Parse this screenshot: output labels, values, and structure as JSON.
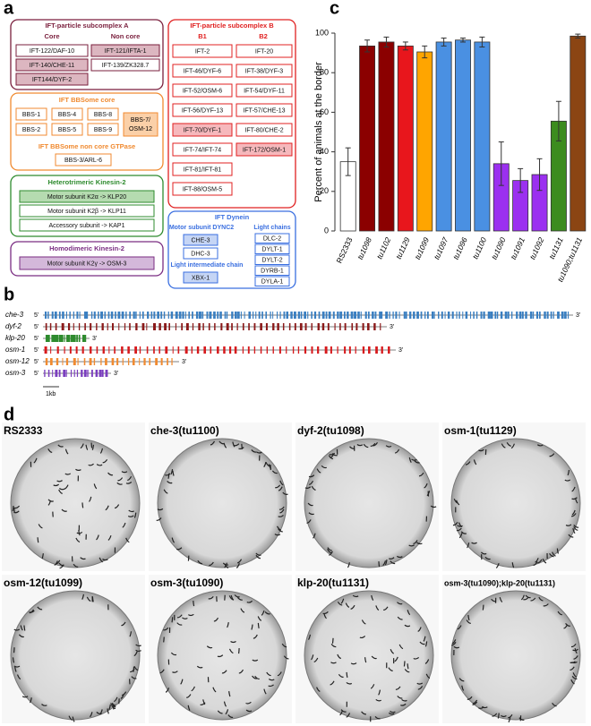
{
  "panel_labels": {
    "a": "a",
    "b": "b",
    "c": "c",
    "d": "d"
  },
  "panel_a": {
    "subcomplex_a": {
      "title": "IFT-particle subcomplex A",
      "core": "Core",
      "non_core": "Non core",
      "core_items": [
        "IFT-122/DAF-10",
        "IFT-140/CHE-11",
        "IFT144/DYF-2"
      ],
      "non_core_items": [
        "IFT-121/IFTA-1",
        "IFT-139/ZK328.7"
      ]
    },
    "subcomplex_b": {
      "title": "IFT-particle subcomplex B",
      "b1": "B1",
      "b2": "B2",
      "b1_items": [
        "IFT-2",
        "IFT-46/DYF-6",
        "IFT-52/OSM-6",
        "IFT-56/DYF-13",
        "IFT-70/DYF-1",
        "IFT-74/IFT-74",
        "IFT-81/IFT-81",
        "IFT-88/OSM-5"
      ],
      "b2_items": [
        "IFT-20",
        "IFT-38/DYF-3",
        "IFT-54/DYF-11",
        "IFT-57/CHE-13",
        "IFT-80/CHE-2",
        "IFT-172/OSM-1"
      ]
    },
    "bbsome": {
      "title": "IFT BBSome core",
      "items": [
        "BBS-1",
        "BBS-4",
        "BBS-8",
        "BBS-2",
        "BBS-5",
        "BBS-9"
      ],
      "bbs7": [
        "BBS-7/",
        "OSM-12"
      ],
      "gtpase_title": "IFT BBSome non core GTPase",
      "gtpase_item": "BBS-3/ARL-6"
    },
    "heterotrimeric": {
      "title": "Heterotrimeric Kinesin-2",
      "items": [
        "Motor subunit K2α -> KLP20",
        "Motor subunit K2β -> KLP11",
        "Accessory subunit -> KAP1"
      ]
    },
    "homodimeric": {
      "title": "Homodimeric Kinesin-2",
      "items": [
        "Motor subunit K2γ -> OSM-3"
      ]
    },
    "dynein": {
      "title": "IFT Dynein",
      "motor": "Motor subunit DYNC2",
      "motor_items": [
        "CHE-3",
        "DHC-3"
      ],
      "lic": "Light intermediate chain",
      "lic_items": [
        "XBX-1"
      ],
      "light": "Light chains",
      "light_items": [
        "DLC-2",
        "DYLT-1",
        "DYLT-2",
        "DYRB-1",
        "DYLA-1"
      ]
    }
  },
  "panel_b": {
    "genes": [
      "che-3",
      "dyf-2",
      "klp-20",
      "osm-1",
      "osm-12",
      "osm-3"
    ],
    "five_prime": "5'",
    "three_prime": "3'",
    "scale": "1kb"
  },
  "chart_data": {
    "type": "bar",
    "ylabel": "Percent of animals at the border",
    "categories": [
      "RS2333",
      "tu1098",
      "tu1102",
      "tu1129",
      "tu1099",
      "tu1097",
      "tu1096",
      "tu1100",
      "tu1090",
      "tu1091",
      "tu1092",
      "tu1131",
      "tu1090;tu1131"
    ],
    "values": [
      35,
      93.5,
      95.5,
      93.5,
      90.5,
      95.5,
      96.5,
      95.5,
      34,
      25.5,
      28.5,
      55.5,
      98.5
    ],
    "errors": [
      7,
      3,
      2.5,
      2,
      3,
      2,
      1,
      2.5,
      11,
      6,
      8,
      10,
      1
    ],
    "colors": [
      "#ffffff",
      "#8b0000",
      "#8b0000",
      "#e8161c",
      "#ffa500",
      "#4a90e2",
      "#4a90e2",
      "#4a90e2",
      "#9b30f0",
      "#9b30f0",
      "#9b30f0",
      "#3c8c1e",
      "#8b4513"
    ],
    "ylim": [
      0,
      100
    ],
    "yticks": [
      0,
      20,
      40,
      60,
      80,
      100
    ]
  },
  "panel_d": {
    "labels": [
      "RS2333",
      "che-3(tu1100)",
      "dyf-2(tu1098)",
      "osm-1(tu1129)",
      "osm-12(tu1099)",
      "osm-3(tu1090)",
      "klp-20(tu1131)",
      "osm-3(tu1090);klp-20(tu1131)"
    ]
  }
}
